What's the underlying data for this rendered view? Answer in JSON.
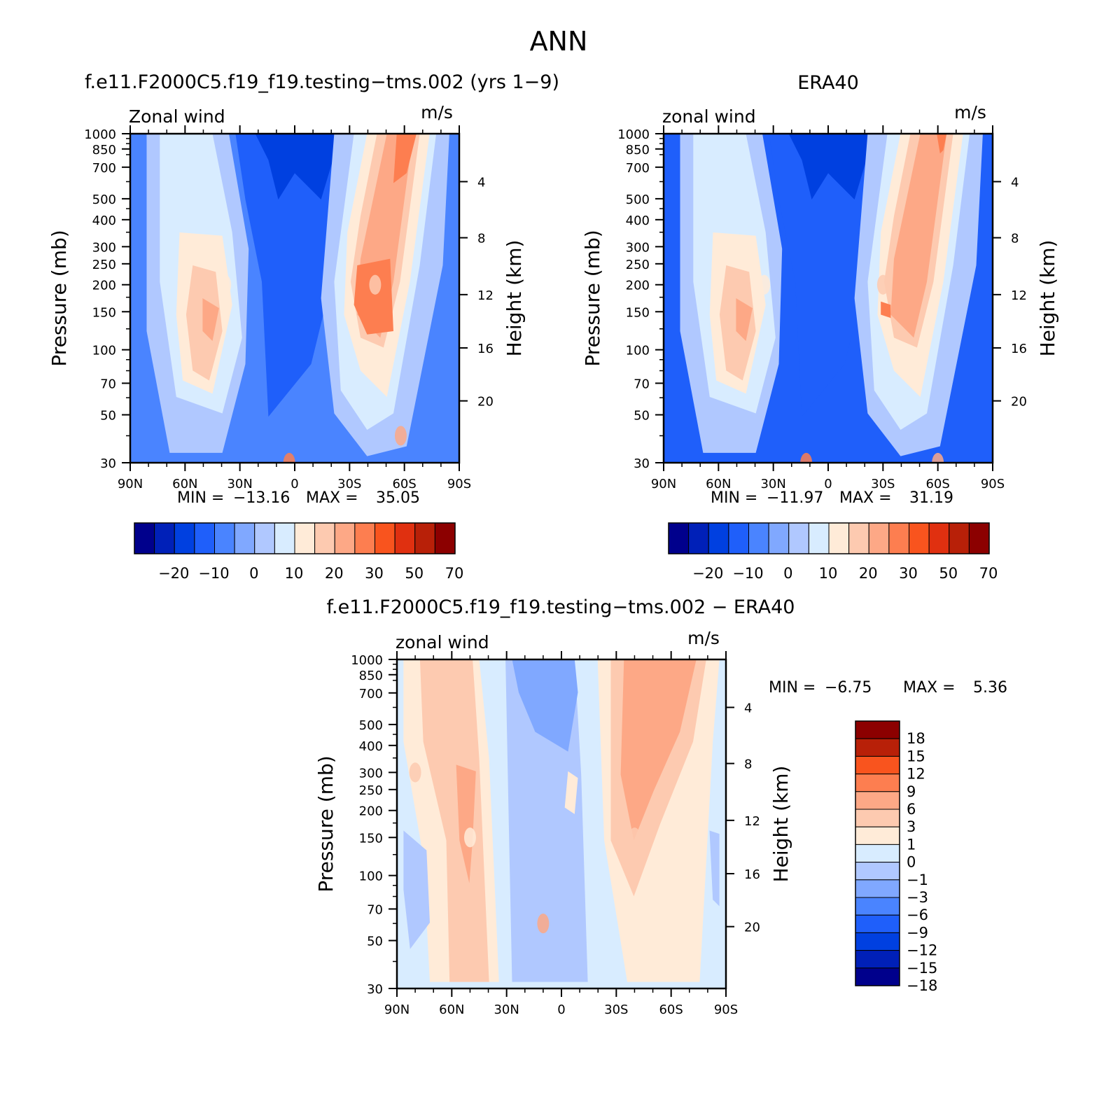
{
  "figure_title": "ANN",
  "colors": {
    "panel_scale": [
      "#00008c",
      "#0020b8",
      "#0040e0",
      "#1f5ffa",
      "#4a84ff",
      "#80a8ff",
      "#b0c8ff",
      "#d8ecff",
      "#ffebd8",
      "#fdcab0",
      "#fda886",
      "#fd7e50",
      "#f9541e",
      "#e03010",
      "#b82008",
      "#8c0000"
    ],
    "diff_scale": [
      "#00008c",
      "#0020b8",
      "#0040e0",
      "#1f5ffa",
      "#4a84ff",
      "#80a8ff",
      "#b0c8ff",
      "#d8ecff",
      "#ffebd8",
      "#fdcab0",
      "#fda886",
      "#fd7e50",
      "#f9541e",
      "#b82008",
      "#8c0000"
    ]
  },
  "chart_data": [
    {
      "type": "heatmap",
      "title": "f.e11.F2000C5.f19_f19.testing−tms.002 (yrs 1−9)",
      "left_label": "Zonal wind",
      "units": "m/s",
      "ylabel": "Pressure (mb)",
      "ylabel2": "Height (km)",
      "x_ticks": [
        "90N",
        "60N",
        "30N",
        "0",
        "30S",
        "60S",
        "90S"
      ],
      "y_ticks": [
        "30",
        "50",
        "70",
        "100",
        "150",
        "200",
        "250",
        "300",
        "400",
        "500",
        "700",
        "850",
        "1000"
      ],
      "y2_ticks": [
        "20",
        "16",
        "12",
        "8",
        "4"
      ],
      "min_label": "MIN =",
      "min": "−13.16",
      "max_label": "MAX =",
      "max": "35.05",
      "colorbar_labels": [
        "−20",
        "−10",
        "0",
        "10",
        "20",
        "30",
        "50",
        "70"
      ],
      "xlim": [
        90,
        -90
      ],
      "ylim": [
        1000,
        30
      ],
      "features": [
        {
          "lat": 38,
          "p": 200,
          "value": 22
        },
        {
          "lat": -44,
          "p": 200,
          "value": 35
        },
        {
          "lat": -58,
          "p": 40,
          "value": 32
        },
        {
          "lat": 3,
          "p": 30,
          "value": -13
        }
      ]
    },
    {
      "type": "heatmap",
      "title": "ERA40",
      "left_label": "zonal wind",
      "units": "m/s",
      "ylabel": "Pressure (mb)",
      "ylabel2": "Height (km)",
      "x_ticks": [
        "90N",
        "60N",
        "30N",
        "0",
        "30S",
        "60S",
        "90S"
      ],
      "y_ticks": [
        "30",
        "50",
        "70",
        "100",
        "150",
        "200",
        "250",
        "300",
        "400",
        "500",
        "700",
        "850",
        "1000"
      ],
      "y2_ticks": [
        "20",
        "16",
        "12",
        "8",
        "4"
      ],
      "min_label": "MIN =",
      "min": "−11.97",
      "max_label": "MAX =",
      "max": "31.19",
      "colorbar_labels": [
        "−20",
        "−10",
        "0",
        "10",
        "20",
        "30",
        "50",
        "70"
      ],
      "xlim": [
        90,
        -90
      ],
      "ylim": [
        1000,
        30
      ],
      "features": [
        {
          "lat": 35,
          "p": 200,
          "value": 22
        },
        {
          "lat": -30,
          "p": 200,
          "value": 31
        },
        {
          "lat": -60,
          "p": 30,
          "value": 30
        },
        {
          "lat": 12,
          "p": 30,
          "value": -12
        }
      ]
    },
    {
      "type": "heatmap",
      "title": "f.e11.F2000C5.f19_f19.testing−tms.002 − ERA40",
      "left_label": "zonal wind",
      "units": "m/s",
      "ylabel": "Pressure (mb)",
      "ylabel2": "Height (km)",
      "x_ticks": [
        "90N",
        "60N",
        "30N",
        "0",
        "30S",
        "60S",
        "90S"
      ],
      "y_ticks": [
        "30",
        "50",
        "70",
        "100",
        "150",
        "200",
        "250",
        "300",
        "400",
        "500",
        "700",
        "850",
        "1000"
      ],
      "y2_ticks": [
        "20",
        "16",
        "12",
        "8",
        "4"
      ],
      "min_label": "MIN =",
      "min": "−6.75",
      "max_label": "MAX =",
      "max": "5.36",
      "colorbar_labels": [
        "18",
        "15",
        "12",
        "9",
        "6",
        "3",
        "1",
        "0",
        "−1",
        "−3",
        "−6",
        "−9",
        "−12",
        "−15",
        "−18"
      ],
      "xlim": [
        90,
        -90
      ],
      "ylim": [
        1000,
        30
      ],
      "features": [
        {
          "lat": 50,
          "p": 150,
          "value": 5
        },
        {
          "lat": -40,
          "p": 150,
          "value": 5
        },
        {
          "lat": 10,
          "p": 60,
          "value": -6
        },
        {
          "lat": 80,
          "p": 300,
          "value": -3
        }
      ]
    }
  ]
}
